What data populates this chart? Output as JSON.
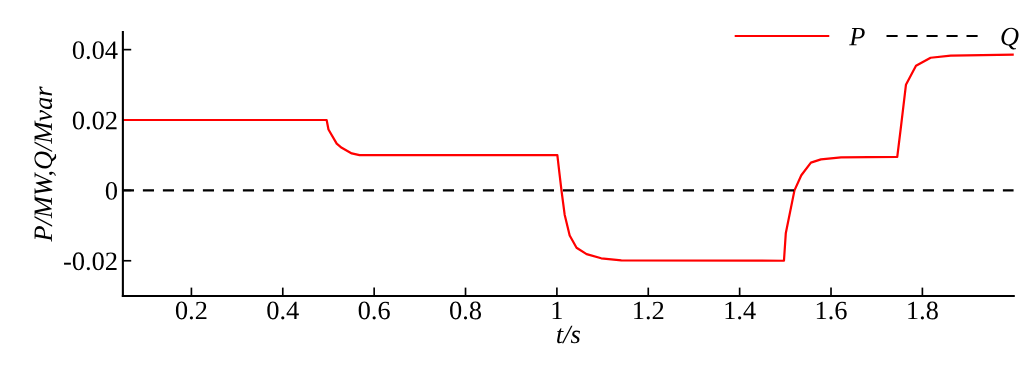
{
  "chart_data": {
    "type": "line",
    "xlabel": "t/s",
    "ylabel": "P/MW,Q/Mvar",
    "xlim": [
      0.05,
      2.0
    ],
    "xticks": [
      0.2,
      0.4,
      0.6,
      0.8,
      1,
      1.2,
      1.4,
      1.6,
      1.8
    ],
    "ylim": [
      -0.03,
      0.045
    ],
    "yticks": [
      -0.02,
      0,
      0.02,
      0.04
    ],
    "grid": false,
    "legend": "top right",
    "series": [
      {
        "name": "P",
        "color": "#ff0000",
        "line_style": "solid",
        "x": [
          0.05,
          0.496,
          0.5,
          0.518,
          0.529,
          0.551,
          0.568,
          1.001,
          1.005,
          1.01,
          1.017,
          1.028,
          1.043,
          1.065,
          1.097,
          1.141,
          1.497,
          1.501,
          1.52,
          1.535,
          1.556,
          1.578,
          1.622,
          1.745,
          1.753,
          1.764,
          1.786,
          1.818,
          1.862,
          2.0
        ],
        "values": [
          0.02,
          0.02,
          0.0173,
          0.0133,
          0.0121,
          0.0105,
          0.01,
          0.01,
          0.0055,
          0,
          -0.0069,
          -0.0128,
          -0.0163,
          -0.0181,
          -0.0193,
          -0.0199,
          -0.02,
          -0.0122,
          0,
          0.0043,
          0.0079,
          0.0088,
          0.0094,
          0.0095,
          0.018,
          0.03,
          0.0354,
          0.0377,
          0.0383,
          0.0386
        ]
      },
      {
        "name": "Q",
        "color": "#000000",
        "line_style": "dashed",
        "x": [
          0.05,
          2.0
        ],
        "values": [
          0,
          0
        ]
      }
    ]
  }
}
